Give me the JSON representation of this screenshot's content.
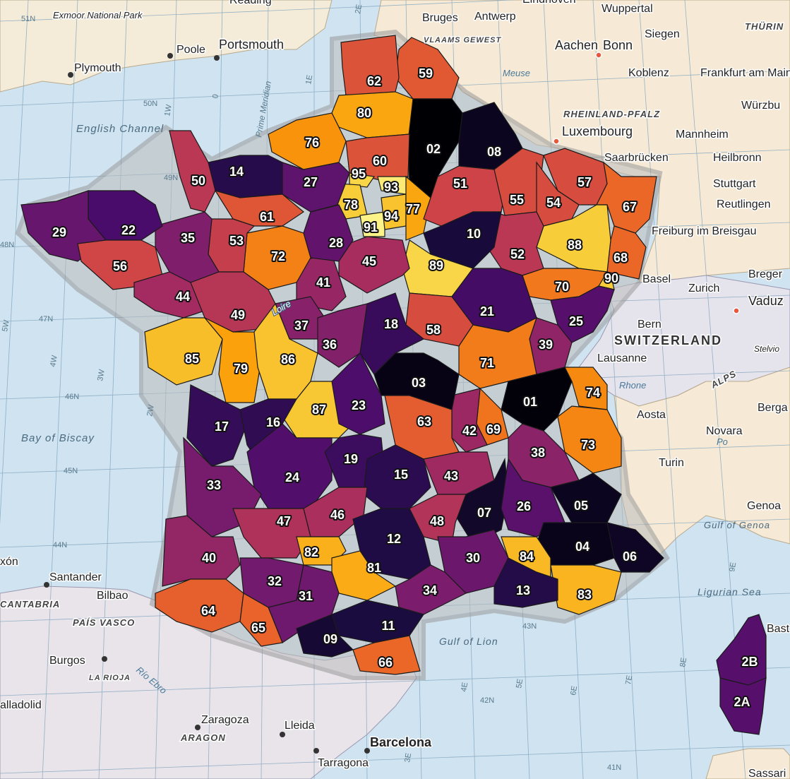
{
  "palette": {
    "sea": "#cfe3f0",
    "land_other": "#f6ead6",
    "land_spain": "#e8e4ea",
    "land_swiss": "#e4e2ec",
    "grid": "#7fa3bd",
    "colormap": [
      "#000004",
      "#1b0c41",
      "#4a0c6b",
      "#781c6d",
      "#a52c60",
      "#cf4446",
      "#ed6925",
      "#fb9b06",
      "#f7d13d",
      "#fcffa4"
    ]
  },
  "colormap_name": "inferno",
  "departments": [
    {
      "code": "59",
      "level": 0.62
    },
    {
      "code": "62",
      "level": 0.6
    },
    {
      "code": "80",
      "level": 0.8
    },
    {
      "code": "02",
      "level": 0.0
    },
    {
      "code": "08",
      "level": 0.05
    },
    {
      "code": "76",
      "level": 0.76
    },
    {
      "code": "60",
      "level": 0.6
    },
    {
      "code": "95",
      "level": 0.9
    },
    {
      "code": "93",
      "level": 0.95
    },
    {
      "code": "78",
      "level": 0.88
    },
    {
      "code": "91",
      "level": 0.97
    },
    {
      "code": "94",
      "level": 0.86
    },
    {
      "code": "77",
      "level": 0.8
    },
    {
      "code": "51",
      "level": 0.55
    },
    {
      "code": "55",
      "level": 0.58
    },
    {
      "code": "57",
      "level": 0.58
    },
    {
      "code": "54",
      "level": 0.58
    },
    {
      "code": "67",
      "level": 0.66
    },
    {
      "code": "68",
      "level": 0.66
    },
    {
      "code": "90",
      "level": 0.88
    },
    {
      "code": "88",
      "level": 0.88
    },
    {
      "code": "52",
      "level": 0.5
    },
    {
      "code": "10",
      "level": 0.1
    },
    {
      "code": "89",
      "level": 0.9
    },
    {
      "code": "70",
      "level": 0.7
    },
    {
      "code": "25",
      "level": 0.25
    },
    {
      "code": "21",
      "level": 0.21
    },
    {
      "code": "39",
      "level": 0.39
    },
    {
      "code": "58",
      "level": 0.58
    },
    {
      "code": "71",
      "level": 0.71
    },
    {
      "code": "01",
      "level": 0.01
    },
    {
      "code": "74",
      "level": 0.74
    },
    {
      "code": "73",
      "level": 0.73
    },
    {
      "code": "69",
      "level": 0.69
    },
    {
      "code": "42",
      "level": 0.42
    },
    {
      "code": "38",
      "level": 0.38
    },
    {
      "code": "03",
      "level": 0.03
    },
    {
      "code": "63",
      "level": 0.63
    },
    {
      "code": "18",
      "level": 0.18
    },
    {
      "code": "45",
      "level": 0.45
    },
    {
      "code": "41",
      "level": 0.41
    },
    {
      "code": "37",
      "level": 0.37
    },
    {
      "code": "36",
      "level": 0.36
    },
    {
      "code": "28",
      "level": 0.28
    },
    {
      "code": "27",
      "level": 0.27
    },
    {
      "code": "14",
      "level": 0.14
    },
    {
      "code": "50",
      "level": 0.5
    },
    {
      "code": "61",
      "level": 0.61
    },
    {
      "code": "72",
      "level": 0.72
    },
    {
      "code": "53",
      "level": 0.53
    },
    {
      "code": "35",
      "level": 0.35
    },
    {
      "code": "22",
      "level": 0.22
    },
    {
      "code": "29",
      "level": 0.29
    },
    {
      "code": "56",
      "level": 0.56
    },
    {
      "code": "44",
      "level": 0.44
    },
    {
      "code": "49",
      "level": 0.49
    },
    {
      "code": "85",
      "level": 0.85
    },
    {
      "code": "79",
      "level": 0.79
    },
    {
      "code": "86",
      "level": 0.86
    },
    {
      "code": "87",
      "level": 0.87
    },
    {
      "code": "23",
      "level": 0.23
    },
    {
      "code": "17",
      "level": 0.17
    },
    {
      "code": "16",
      "level": 0.16
    },
    {
      "code": "24",
      "level": 0.24
    },
    {
      "code": "19",
      "level": 0.19
    },
    {
      "code": "15",
      "level": 0.15
    },
    {
      "code": "43",
      "level": 0.43
    },
    {
      "code": "07",
      "level": 0.07
    },
    {
      "code": "26",
      "level": 0.26
    },
    {
      "code": "05",
      "level": 0.05
    },
    {
      "code": "04",
      "level": 0.04
    },
    {
      "code": "06",
      "level": 0.06
    },
    {
      "code": "33",
      "level": 0.33
    },
    {
      "code": "47",
      "level": 0.47
    },
    {
      "code": "46",
      "level": 0.46
    },
    {
      "code": "12",
      "level": 0.12
    },
    {
      "code": "48",
      "level": 0.48
    },
    {
      "code": "30",
      "level": 0.3
    },
    {
      "code": "84",
      "level": 0.84
    },
    {
      "code": "83",
      "level": 0.83
    },
    {
      "code": "13",
      "level": 0.13
    },
    {
      "code": "40",
      "level": 0.4
    },
    {
      "code": "32",
      "level": 0.32
    },
    {
      "code": "82",
      "level": 0.82
    },
    {
      "code": "81",
      "level": 0.81
    },
    {
      "code": "34",
      "level": 0.34
    },
    {
      "code": "31",
      "level": 0.31
    },
    {
      "code": "11",
      "level": 0.11
    },
    {
      "code": "64",
      "level": 0.64
    },
    {
      "code": "65",
      "level": 0.65
    },
    {
      "code": "09",
      "level": 0.09
    },
    {
      "code": "66",
      "level": 0.66
    },
    {
      "code": "2B",
      "level": 0.25
    },
    {
      "code": "2A",
      "level": 0.25
    }
  ],
  "places": {
    "exmoor": "Exmoor National Park",
    "poole": "Poole",
    "portsmouth": "Portsmouth",
    "plymouth": "Plymouth",
    "reading": "Reading",
    "english_channel": "English Channel",
    "bruges": "Bruges",
    "antwerp": "Antwerp",
    "eindhoven": "Eindhoven",
    "wuppertal": "Wuppertal",
    "vlaams": "VLAAMS GEWEST",
    "meuse": "Meuse",
    "siegen": "Siegen",
    "thuringen": "THÜRIN",
    "aachen": "Aachen",
    "bonn": "Bonn",
    "koblenz": "Koblenz",
    "frankfurt": "Frankfurt am Main",
    "wurzburg": "Würzbu",
    "rheinland": "RHEINLAND-PFALZ",
    "luxembourg": "Luxembourg",
    "mannheim": "Mannheim",
    "saarbrucken": "Saarbrücken",
    "heilbronn": "Heilbronn",
    "stuttgart": "Stuttgart",
    "reutlingen": "Reutlingen",
    "freiburg": "Freiburg im Breisgau",
    "basel": "Basel",
    "zurich": "Zurich",
    "vaduz": "Vaduz",
    "bregenz": "Breger",
    "bern": "Bern",
    "switzerland": "SWITZERLAND",
    "lausanne": "Lausanne",
    "stelvio": "Stelvio",
    "rhone": "Rhone",
    "alps": "ALPS",
    "aosta": "Aosta",
    "bergamo": "Berga",
    "novara": "Novara",
    "turin": "Turin",
    "po": "Po",
    "genoa": "Genoa",
    "gulf_genoa": "Gulf of Genoa",
    "ligurian": "Ligurian Sea",
    "bastia": "Bast",
    "sassari": "Sassari",
    "bay_biscay": "Bay of Biscay",
    "gulf_lion": "Gulf of Lion",
    "loire": "Loire",
    "prime_meridian": "Prime Meridian",
    "santander": "Santander",
    "bilbao": "Bilbao",
    "cantabria": "CANTABRIA",
    "pais_vasco": "PAÍS VASCO",
    "burgos": "Burgos",
    "la_rioja": "LA RIOJA",
    "rio_ebro": "Río Ebro",
    "valladolid": "alladolid",
    "zaragoza": "Zaragoza",
    "aragon": "ARAGON",
    "lleida": "Lleida",
    "barcelona": "Barcelona",
    "tarragona": "Tarragona",
    "gijon": "xón"
  },
  "graticule": {
    "lat": [
      "51N",
      "50N",
      "49N",
      "48N",
      "47N",
      "46N",
      "45N",
      "44N",
      "43N",
      "42N",
      "41N"
    ],
    "lon": [
      "5W",
      "4W",
      "3W",
      "2W",
      "1W",
      "0",
      "1E",
      "2E",
      "3E",
      "4E",
      "5E",
      "6E",
      "7E",
      "8E",
      "9E"
    ]
  }
}
